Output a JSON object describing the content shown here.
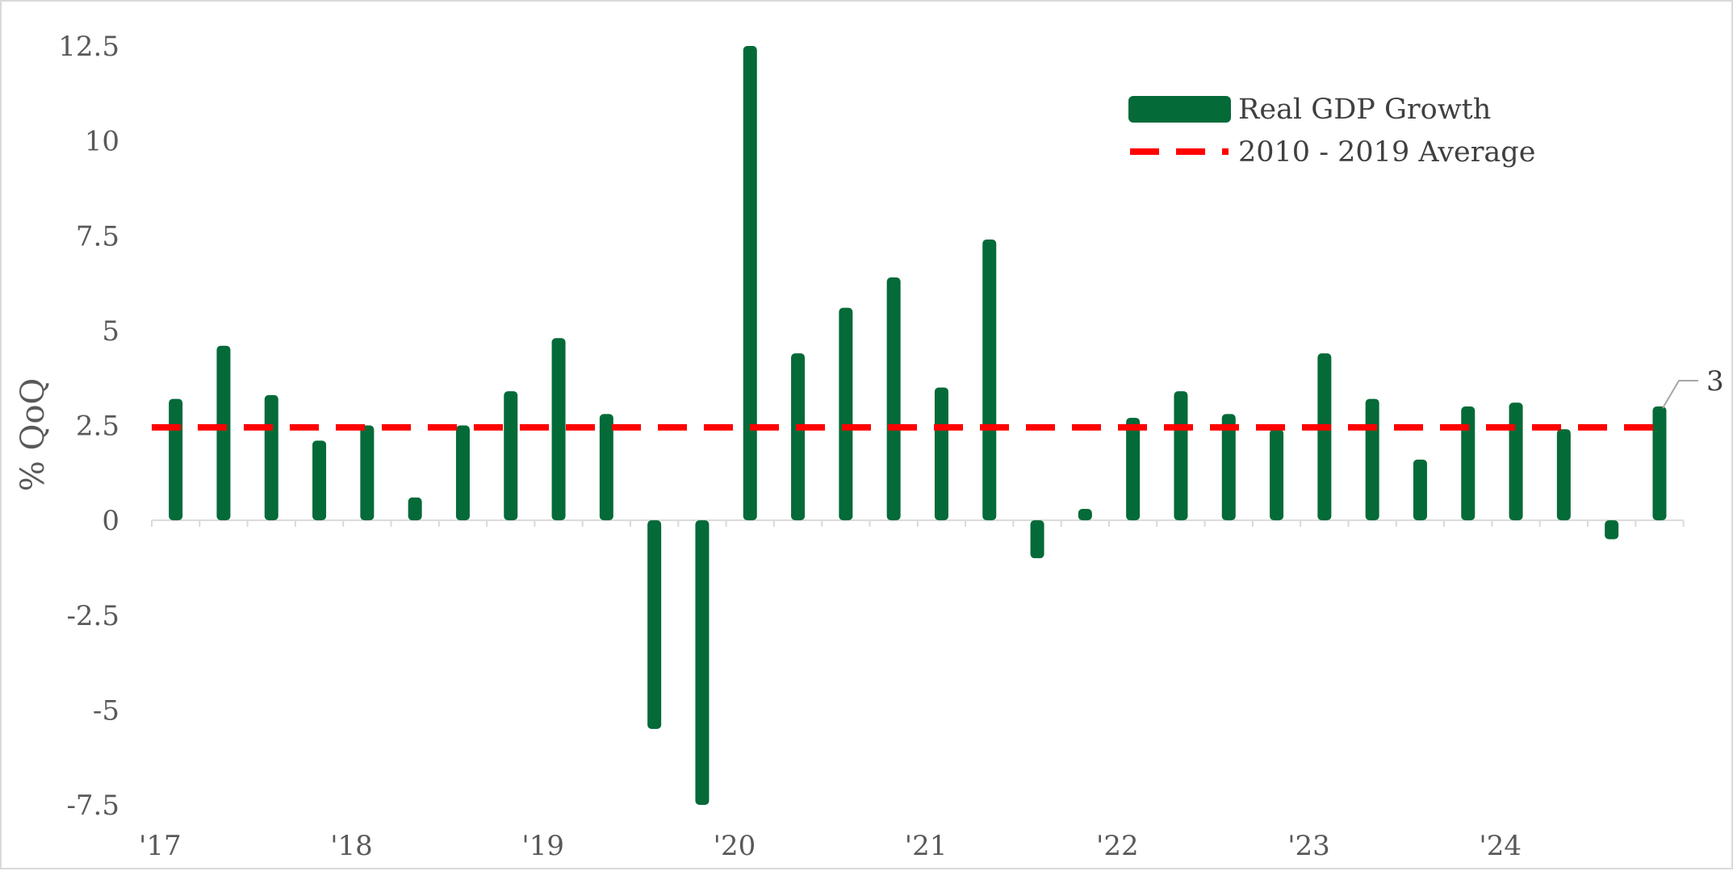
{
  "chart_data": {
    "type": "bar",
    "ylabel": "% QoQ",
    "ylim": [
      -7.5,
      12.5
    ],
    "y_ticks": [
      "12.5",
      "10",
      "7.5",
      "5",
      "2.5",
      "0",
      "-2.5",
      "-5",
      "-7.5"
    ],
    "x_tick_labels": [
      "'17",
      "'18",
      "'19",
      "'20",
      "'21",
      "'22",
      "'23",
      "'24"
    ],
    "categories": [
      "2017Q1",
      "2017Q2",
      "2017Q3",
      "2017Q4",
      "2018Q1",
      "2018Q2",
      "2018Q3",
      "2018Q4",
      "2019Q1",
      "2019Q2",
      "2019Q3",
      "2019Q4",
      "2020Q1",
      "2020Q2",
      "2020Q3",
      "2020Q4",
      "2021Q1",
      "2021Q2",
      "2021Q3",
      "2021Q4",
      "2022Q1",
      "2022Q2",
      "2022Q3",
      "2022Q4",
      "2023Q1",
      "2023Q2",
      "2023Q3",
      "2023Q4",
      "2024Q1",
      "2024Q2",
      "2024Q3",
      "2024Q4"
    ],
    "series": [
      {
        "name": "Real GDP Growth",
        "color": "#046a38",
        "type": "bar",
        "values": [
          3.2,
          4.6,
          3.3,
          2.1,
          2.5,
          0.6,
          2.5,
          3.4,
          4.8,
          2.8,
          -5.5,
          -7.5,
          12.5,
          4.4,
          5.6,
          6.4,
          3.5,
          7.4,
          -1.0,
          0.3,
          2.7,
          3.4,
          2.8,
          2.4,
          4.4,
          3.2,
          1.6,
          3.0,
          3.1,
          2.4,
          -0.5,
          3.0
        ]
      },
      {
        "name": "2010 - 2019 Average",
        "color": "#ff0000",
        "type": "line",
        "style": "dashed",
        "value": 2.45
      }
    ],
    "data_label": {
      "text": "3",
      "category": "2024Q4"
    },
    "legend_position": "top-right",
    "grid": false
  }
}
